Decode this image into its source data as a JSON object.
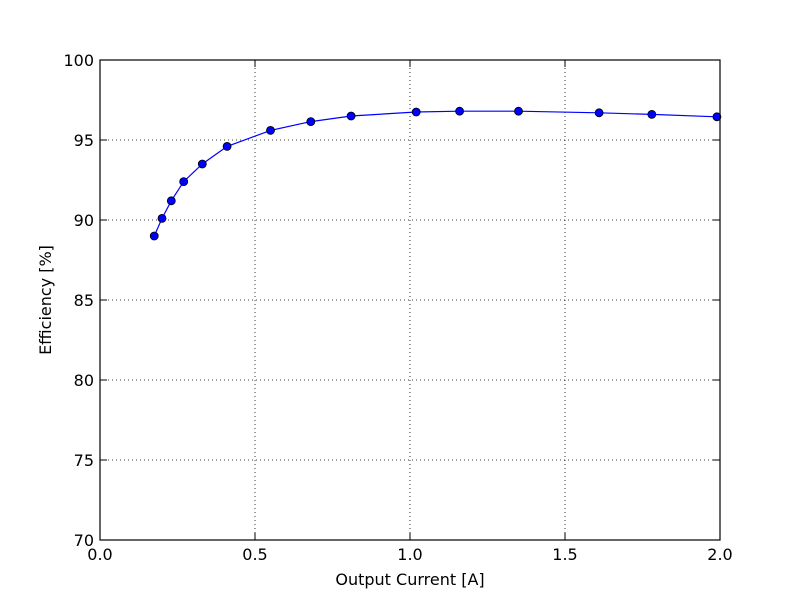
{
  "chart_data": {
    "type": "line",
    "title": "",
    "xlabel": "Output Current [A]",
    "ylabel": "Efficiency [%]",
    "xlim": [
      0.0,
      2.0
    ],
    "ylim": [
      70,
      100
    ],
    "xticks": [
      0.0,
      0.5,
      1.0,
      1.5,
      2.0
    ],
    "xtick_labels": [
      "0.0",
      "0.5",
      "1.0",
      "1.5",
      "2.0"
    ],
    "yticks": [
      70,
      75,
      80,
      85,
      90,
      95,
      100
    ],
    "ytick_labels": [
      "70",
      "75",
      "80",
      "85",
      "90",
      "95",
      "100"
    ],
    "grid": true,
    "legend": "none",
    "series": [
      {
        "color": "#0000ff",
        "marker": "circle",
        "x": [
          0.175,
          0.2,
          0.23,
          0.27,
          0.33,
          0.41,
          0.55,
          0.68,
          0.81,
          1.02,
          1.16,
          1.35,
          1.61,
          1.78,
          1.99
        ],
        "y": [
          89.0,
          90.1,
          91.2,
          92.4,
          93.5,
          94.6,
          95.6,
          96.15,
          96.5,
          96.75,
          96.8,
          96.8,
          96.7,
          96.6,
          96.45
        ]
      }
    ]
  }
}
